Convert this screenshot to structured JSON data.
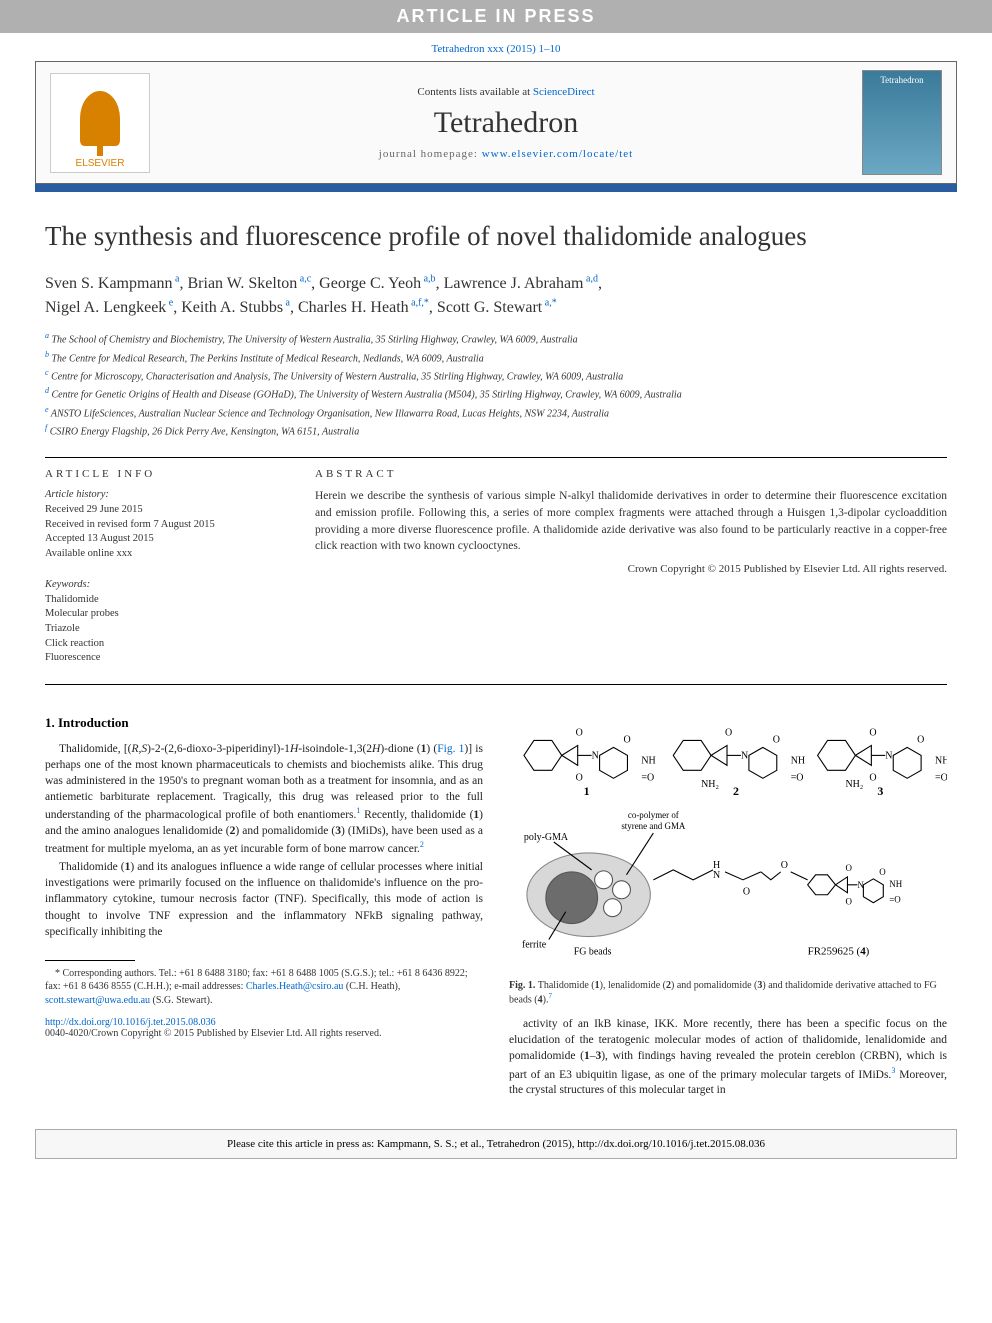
{
  "banner": "ARTICLE IN PRESS",
  "top_citation": "Tetrahedron xxx (2015) 1–10",
  "header": {
    "contents_line_pre": "Contents lists available at ",
    "contents_link": "ScienceDirect",
    "journal": "Tetrahedron",
    "homepage_pre": "journal homepage: ",
    "homepage_url": "www.elsevier.com/locate/tet",
    "publisher_logo": "ELSEVIER",
    "cover_label": "Tetrahedron"
  },
  "article": {
    "title": "The synthesis and fluorescence profile of novel thalidomide analogues",
    "authors_line1": "Sven S. Kampmann ᵃ, Brian W. Skelton ᵃ·ᶜ, George C. Yeoh ᵃ·ᵇ, Lawrence J. Abraham ᵃ·ᵈ,",
    "authors_line2": "Nigel A. Lengkeek ᵉ, Keith A. Stubbs ᵃ, Charles H. Heath ᵃ·ᶠ·*, Scott G. Stewart ᵃ·*",
    "affiliations": [
      {
        "k": "a",
        "t": "The School of Chemistry and Biochemistry, The University of Western Australia, 35 Stirling Highway, Crawley, WA 6009, Australia"
      },
      {
        "k": "b",
        "t": "The Centre for Medical Research, The Perkins Institute of Medical Research, Nedlands, WA 6009, Australia"
      },
      {
        "k": "c",
        "t": "Centre for Microscopy, Characterisation and Analysis, The University of Western Australia, 35 Stirling Highway, Crawley, WA 6009, Australia"
      },
      {
        "k": "d",
        "t": "Centre for Genetic Origins of Health and Disease (GOHaD), The University of Western Australia (M504), 35 Stirling Highway, Crawley, WA 6009, Australia"
      },
      {
        "k": "e",
        "t": "ANSTO LifeSciences, Australian Nuclear Science and Technology Organisation, New Illawarra Road, Lucas Heights, NSW 2234, Australia"
      },
      {
        "k": "f",
        "t": "CSIRO Energy Flagship, 26 Dick Perry Ave, Kensington, WA 6151, Australia"
      }
    ]
  },
  "meta": {
    "info_label": "ARTICLE INFO",
    "history_label": "Article history:",
    "history": [
      "Received 29 June 2015",
      "Received in revised form 7 August 2015",
      "Accepted 13 August 2015",
      "Available online xxx"
    ],
    "keywords_label": "Keywords:",
    "keywords": [
      "Thalidomide",
      "Molecular probes",
      "Triazole",
      "Click reaction",
      "Fluorescence"
    ],
    "abstract_label": "ABSTRACT",
    "abstract": "Herein we describe the synthesis of various simple N-alkyl thalidomide derivatives in order to determine their fluorescence excitation and emission profile. Following this, a series of more complex fragments were attached through a Huisgen 1,3-dipolar cycloaddition providing a more diverse fluorescence profile. A thalidomide azide derivative was also found to be particularly reactive in a copper-free click reaction with two known cyclooctynes.",
    "abs_copyright": "Crown Copyright © 2015 Published by Elsevier Ltd. All rights reserved."
  },
  "body": {
    "intro_heading": "1. Introduction",
    "p1": "Thalidomide, [(R,S)-2-(2,6-dioxo-3-piperidinyl)-1H-isoindole-1,3(2H)-dione (1) (Fig. 1)] is perhaps one of the most known pharmaceuticals to chemists and biochemists alike. This drug was administered in the 1950's to pregnant woman both as a treatment for insomnia, and as an antiemetic barbiturate replacement. Tragically, this drug was released prior to the full understanding of the pharmacological profile of both enantiomers.¹ Recently, thalidomide (1) and the amino analogues lenalidomide (2) and pomalidomide (3) (IMiDs), have been used as a treatment for multiple myeloma, an as yet incurable form of bone marrow cancer.²",
    "p2": "Thalidomide (1) and its analogues influence a wide range of cellular processes where initial investigations were primarily focused on the influence on thalidomide's influence on the pro-inflammatory cytokine, tumour necrosis factor (TNF). Specifically, this mode of action is thought to involve TNF expression and the inflammatory NFkB signaling pathway, specifically inhibiting the",
    "p3": "activity of an IkB kinase, IKK. More recently, there has been a specific focus on the elucidation of the teratogenic molecular modes of action of thalidomide, lenalidomide and pomalidomide (1–3), with findings having revealed the protein cereblon (CRBN), which is part of an E3 ubiquitin ligase, as one of the primary molecular targets of IMiDs.³ Moreover, the crystal structures of this molecular target in",
    "footnote_corr": "* Corresponding authors. Tel.: +61 8 6488 3180; fax: +61 8 6488 1005 (S.G.S.); tel.: +61 8 6436 8922; fax: +61 8 6436 8555 (C.H.H.); e-mail addresses: Charles.Heath@csiro.au (C.H. Heath), scott.stewart@uwa.edu.au (S.G. Stewart).",
    "email1": "Charles.Heath@csiro.au",
    "email2": "scott.stewart@uwa.edu.au",
    "doi_link": "http://dx.doi.org/10.1016/j.tet.2015.08.036",
    "issn_line": "0040-4020/Crown Copyright © 2015 Published by Elsevier Ltd. All rights reserved.",
    "figcap": "Fig. 1. Thalidomide (1), lenalidomide (2) and pomalidomide (3) and thalidomide derivative attached to FG beads (4).⁷"
  },
  "figure": {
    "labels": {
      "c1": "1",
      "c2": "2",
      "c3": "3",
      "c4": "FR259625 (4)",
      "polyGMA": "poly-GMA",
      "ferrite": "ferrite",
      "fg": "FG beads",
      "copoly": "co-polymer of",
      "copoly2": "styrene and GMA",
      "nh2a": "NH₂",
      "nh2b": "NH₂"
    },
    "colors": {
      "line": "#000000",
      "grey": "#9a9a9a",
      "darkgrey": "#6c6c6c",
      "bg": "#ffffff"
    },
    "stroke_width": 1.1
  },
  "footer_cite": "Please cite this article in press as: Kampmann, S. S.; et al., Tetrahedron (2015), http://dx.doi.org/10.1016/j.tet.2015.08.036",
  "colors": {
    "banner_bg": "#b0b0b0",
    "banner_fg": "#ffffff",
    "link": "#0066cc",
    "accent": "#295da0",
    "elsevier": "#d88000"
  }
}
